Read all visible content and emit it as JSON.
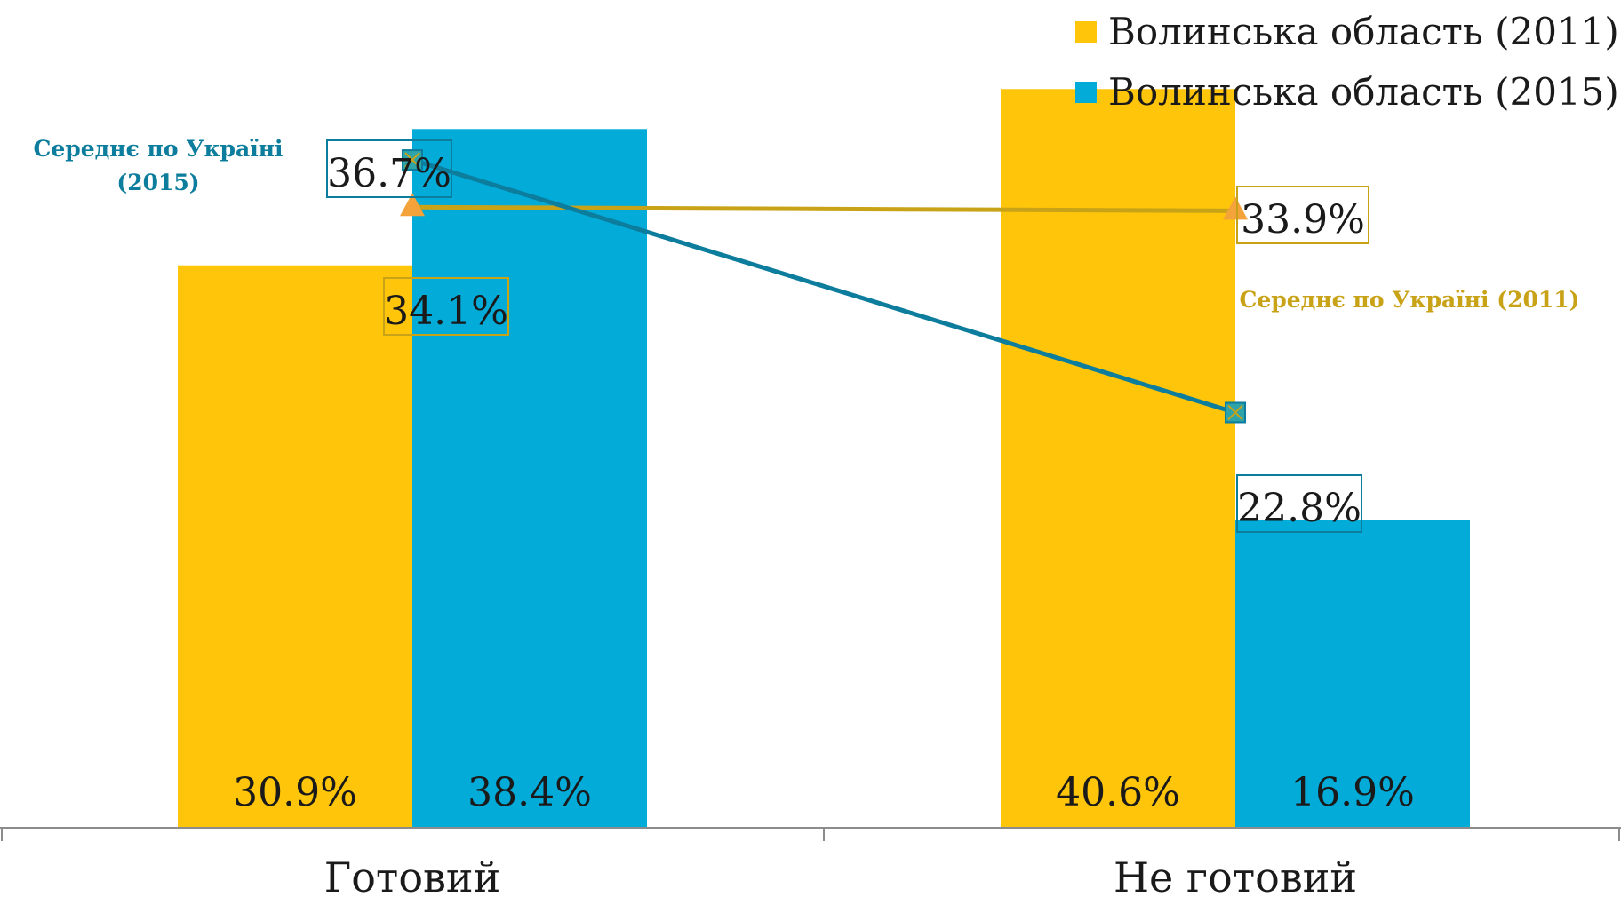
{
  "chart_data": {
    "type": "bar",
    "categories": [
      "Готовий",
      "Не готовий"
    ],
    "series": [
      {
        "name": "Волинська область (2011)",
        "color": "#FEC50A",
        "values": [
          30.9,
          40.6
        ],
        "labels": [
          "30.9%",
          "40.6%"
        ]
      },
      {
        "name": "Волинська область (2015)",
        "color": "#03ABD8",
        "values": [
          38.4,
          16.9
        ],
        "labels": [
          "38.4%",
          "16.9%"
        ]
      }
    ],
    "lines": [
      {
        "annotation": "Середнє по Україні (2015)",
        "annotation_lines": [
          "Середнє по Україні",
          "(2015)"
        ],
        "color": "#0C7D9C",
        "marker": "x-square",
        "values": [
          36.7,
          22.8
        ],
        "labels": [
          "36.7%",
          "22.8%"
        ]
      },
      {
        "annotation": "Середнє по Україні (2011)",
        "color": "#C9A317",
        "marker_color": "#F4A23A",
        "marker": "triangle",
        "values": [
          34.1,
          33.9
        ],
        "labels": [
          "34.1%",
          "33.9%"
        ]
      }
    ],
    "ylim": [
      0,
      45.5
    ],
    "legend_position": "top-right",
    "grid": false,
    "title": "",
    "xlabel": "",
    "ylabel": ""
  }
}
